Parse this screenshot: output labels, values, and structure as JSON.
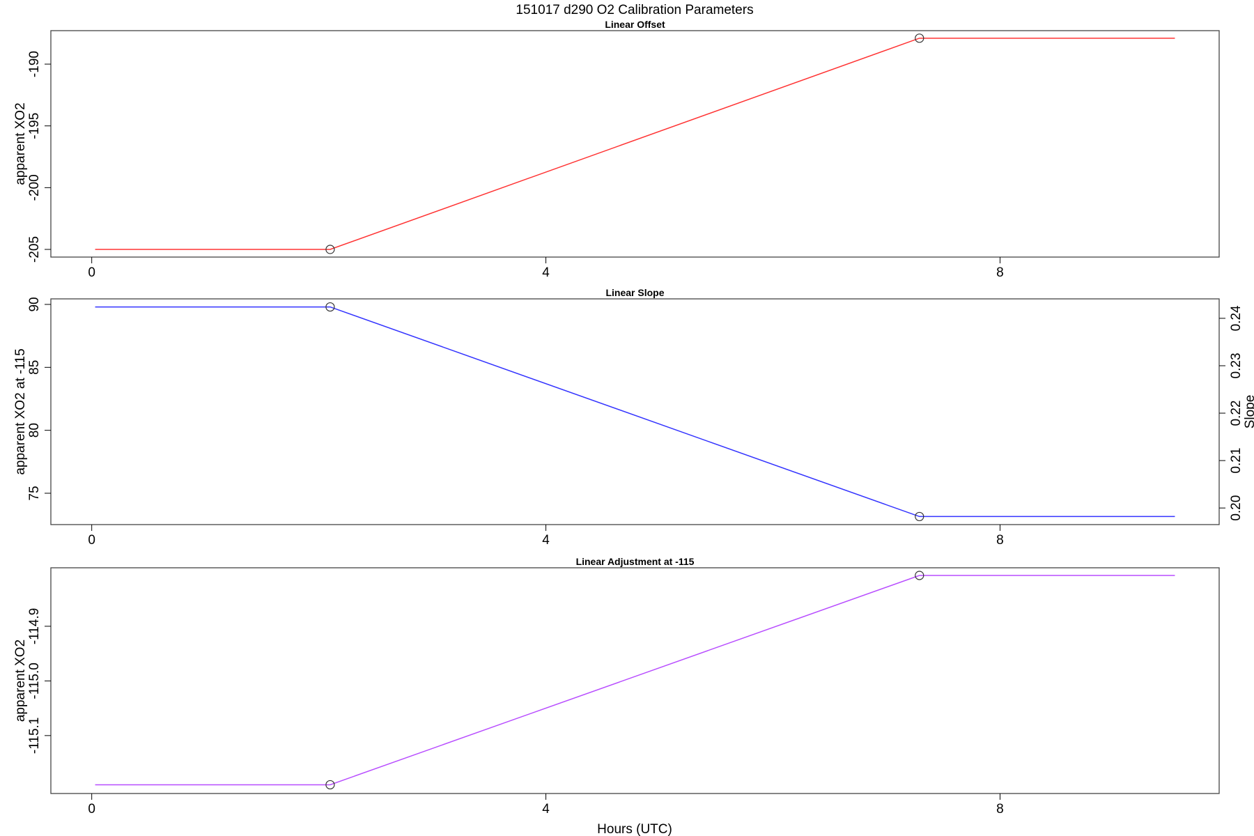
{
  "chart_data": {
    "title": "151017   d290   O2 Calibration Parameters",
    "xlabel": "Hours (UTC)",
    "xlim": [
      -0.36,
      9.93
    ],
    "xticks": [
      0,
      4,
      8
    ],
    "panels": [
      {
        "type": "line",
        "title": "Linear Offset",
        "ylabel": "apparent XO2",
        "ylim": [
          -205.62,
          -187.29
        ],
        "yticks": [
          -205,
          -200,
          -195,
          -190
        ],
        "color": "#ff3333",
        "x": [
          0.03,
          2.1,
          7.29,
          9.54
        ],
        "y": [
          -205.0,
          -205.0,
          -187.9,
          -187.9
        ],
        "markers_x": [
          2.1,
          7.29
        ],
        "markers_y": [
          -205.0,
          -187.9
        ]
      },
      {
        "type": "line",
        "title": "Linear Slope",
        "ylabel": "apparent XO2 at -115",
        "ylim": [
          72.51,
          90.44
        ],
        "yticks": [
          75,
          80,
          85,
          90
        ],
        "right_ylabel": "Slope",
        "right_ylim": [
          0.1965,
          0.2441
        ],
        "right_yticks": [
          "0.20",
          "0.21",
          "0.22",
          "0.23",
          "0.24"
        ],
        "color": "#3333ff",
        "x": [
          0.03,
          2.1,
          7.29,
          9.54
        ],
        "y": [
          89.8,
          89.8,
          73.15,
          73.15
        ],
        "markers_x": [
          2.1,
          7.29
        ],
        "markers_y": [
          89.8,
          73.15
        ]
      },
      {
        "type": "line",
        "title": "Linear Adjustment at -115",
        "ylabel": "apparent XO2",
        "ylim": [
          -115.206,
          -114.793
        ],
        "yticks": [
          "-115.1",
          "-115.0",
          "-114.9"
        ],
        "color": "#b84dff",
        "x": [
          0.03,
          2.1,
          7.29,
          9.54
        ],
        "y": [
          -115.19,
          -115.19,
          -114.807,
          -114.807
        ],
        "markers_x": [
          2.1,
          7.29
        ],
        "markers_y": [
          -115.19,
          -114.807
        ]
      }
    ]
  }
}
